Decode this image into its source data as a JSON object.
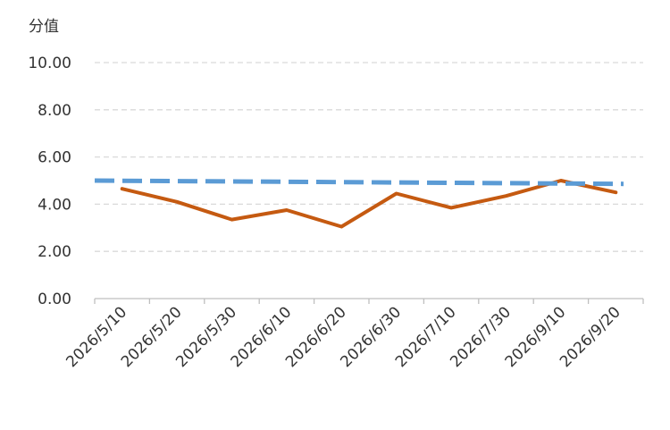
{
  "chart_data": {
    "type": "line",
    "title": "",
    "xlabel": "",
    "ylabel": "分值",
    "categories": [
      "2026/5/10",
      "2026/5/20",
      "2026/5/30",
      "2026/6/10",
      "2026/6/20",
      "2026/6/30",
      "2026/7/10",
      "2026/7/30",
      "2026/9/10",
      "2026/9/20"
    ],
    "ylim": [
      0,
      10
    ],
    "yticks": [
      "0.00",
      "2.00",
      "4.00",
      "6.00",
      "8.00",
      "10.00"
    ],
    "grid": true,
    "legend": "none",
    "series": [
      {
        "values": [
          4.65,
          4.1,
          3.35,
          3.75,
          3.05,
          4.45,
          3.85,
          4.35,
          5.0,
          4.5
        ],
        "color": "#C55A11",
        "style": "solid"
      },
      {
        "values": [
          5.0,
          4.99,
          4.97,
          4.96,
          4.94,
          4.93,
          4.92,
          4.9,
          4.88,
          4.86
        ],
        "color": "#5B9BD5",
        "style": "dashed"
      }
    ]
  }
}
